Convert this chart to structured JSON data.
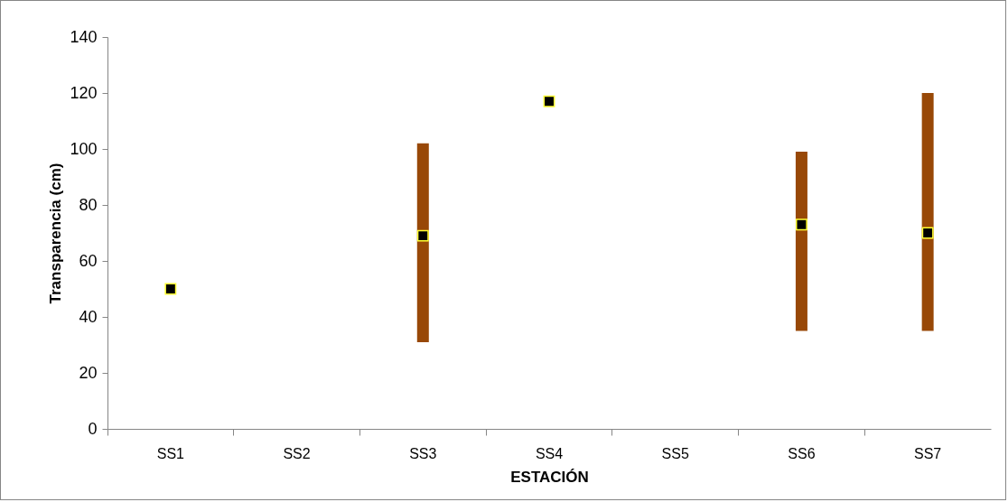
{
  "chart_data": {
    "type": "bar",
    "xlabel": "ESTACIÓN",
    "ylabel": "Transparencia (cm)",
    "categories": [
      "SS1",
      "SS2",
      "SS3",
      "SS4",
      "SS5",
      "SS6",
      "SS7"
    ],
    "ylim": [
      0,
      140
    ],
    "yticks": [
      0,
      20,
      40,
      60,
      80,
      100,
      120,
      140
    ],
    "grid": false,
    "marker": "square",
    "series": [
      {
        "type": "bar",
        "color": "#984807",
        "base": [
          null,
          null,
          31,
          null,
          null,
          35,
          35
        ],
        "values": [
          null,
          null,
          71,
          null,
          null,
          64,
          85
        ]
      },
      {
        "type": "scatter",
        "color": "#000000",
        "values": [
          50,
          null,
          69,
          117,
          null,
          73,
          70
        ]
      }
    ]
  }
}
